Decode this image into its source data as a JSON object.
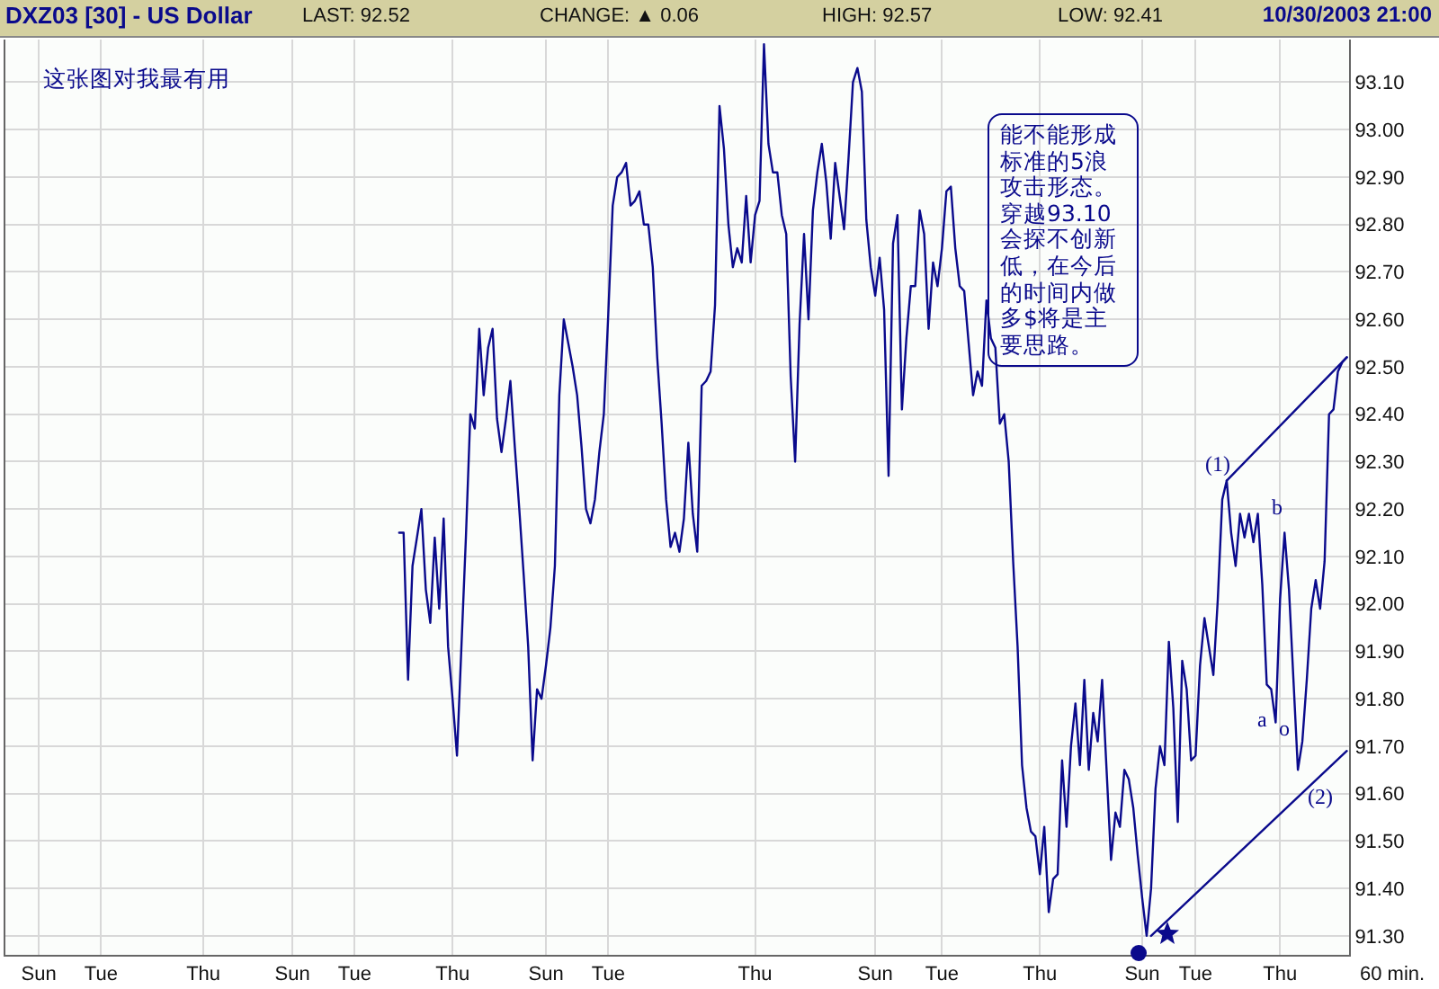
{
  "chart_data": {
    "type": "line",
    "title": "DXZ03 [30] - US Dollar",
    "annotations": [
      "LAST: 92.52",
      "CHANGE: ▲ 0.06",
      "HIGH: 92.57",
      "LOW: 92.41",
      "10/30/2003 21:00",
      "60 min.",
      "这张图对我最有用",
      "能不能形成标准的5浪攻击形态。穿越93.10会探不创新低，在今后的时间内做多$将是主要思路。",
      "(1)",
      "a",
      "b",
      "(2)",
      "o"
    ],
    "categories": [
      null,
      null,
      null,
      null,
      null,
      null,
      null,
      "Sun",
      null,
      null,
      null,
      null,
      null,
      null,
      null,
      null,
      null,
      null,
      null,
      null,
      null,
      "Tue",
      null,
      null,
      null,
      null,
      null,
      null,
      null,
      null,
      null,
      null,
      null,
      null,
      null,
      null,
      null,
      null,
      null,
      null,
      null,
      null,
      null,
      null,
      "Thu",
      null,
      null,
      null,
      null,
      null,
      null,
      null,
      null,
      null,
      null,
      null,
      null,
      null,
      null,
      null,
      null,
      null,
      null,
      null,
      "Sun",
      null,
      null,
      null,
      null,
      null,
      null,
      null,
      null,
      null,
      null,
      null,
      null,
      null,
      "Tue",
      null,
      null,
      null,
      null,
      null,
      null,
      null,
      null,
      null,
      null,
      null,
      null,
      null,
      null,
      null,
      null,
      null,
      null,
      null,
      null,
      null,
      "Thu",
      null,
      null,
      null,
      null,
      null,
      null,
      null,
      null,
      null,
      null,
      null,
      null,
      null,
      null,
      null,
      null,
      null,
      null,
      null,
      null,
      "Sun",
      null,
      null,
      null,
      null,
      null,
      null,
      null,
      null,
      null,
      null,
      null,
      null,
      null,
      "Tue",
      null,
      null,
      null,
      null,
      null,
      null,
      null,
      null,
      null,
      null,
      null,
      null,
      null,
      null,
      null,
      null,
      null,
      null,
      null,
      null,
      null,
      null,
      null,
      null,
      null,
      null,
      null,
      null,
      null,
      null,
      null,
      null,
      "Thu",
      null,
      null,
      null,
      null,
      null,
      null,
      null,
      null,
      null,
      null,
      null,
      null,
      null,
      null,
      null,
      null,
      null,
      null,
      null,
      null,
      null,
      null,
      null,
      null,
      null,
      null,
      "Sun",
      null,
      null,
      null,
      null,
      null,
      null,
      null,
      null,
      null,
      null,
      null,
      null,
      null,
      null,
      "Tue",
      null,
      null,
      null,
      null,
      null,
      null,
      null,
      null,
      null,
      null,
      null,
      null,
      null,
      null,
      null,
      null,
      null,
      null,
      null,
      null,
      null,
      "Thu",
      null,
      null,
      null,
      null,
      null,
      null,
      null,
      null,
      null,
      null,
      null,
      null,
      null,
      null,
      null,
      null,
      null,
      null,
      null,
      null,
      null,
      null,
      "Sun",
      null,
      null,
      null,
      null,
      null,
      null,
      null,
      null,
      null,
      null,
      null,
      "Tue",
      null,
      null,
      null,
      null,
      null,
      null,
      null,
      null,
      null,
      null,
      null,
      null,
      null,
      null,
      null,
      null,
      null,
      null,
      "Thu",
      null,
      null,
      null,
      null,
      null,
      null,
      null,
      null,
      null,
      null,
      null,
      null,
      null,
      null,
      null
    ],
    "series": [
      {
        "color": "#0a0a8c",
        "values": [
          null,
          null,
          null,
          null,
          null,
          null,
          null,
          null,
          null,
          null,
          null,
          null,
          null,
          null,
          null,
          null,
          null,
          null,
          null,
          null,
          null,
          null,
          null,
          null,
          null,
          null,
          null,
          null,
          null,
          null,
          null,
          null,
          null,
          null,
          null,
          null,
          null,
          null,
          null,
          null,
          null,
          null,
          null,
          null,
          null,
          null,
          null,
          null,
          null,
          null,
          null,
          null,
          null,
          null,
          null,
          null,
          null,
          null,
          null,
          null,
          null,
          null,
          null,
          null,
          null,
          null,
          null,
          null,
          null,
          null,
          null,
          null,
          null,
          null,
          null,
          null,
          null,
          null,
          null,
          null,
          null,
          null,
          null,
          null,
          null,
          null,
          null,
          null,
          92.15,
          92.15,
          91.84,
          92.08,
          92.14,
          92.2,
          92.03,
          91.96,
          92.14,
          91.99,
          92.18,
          91.91,
          91.8,
          91.68,
          91.91,
          92.14,
          92.4,
          92.37,
          92.58,
          92.44,
          92.54,
          92.58,
          92.39,
          92.32,
          92.39,
          92.47,
          92.33,
          92.2,
          92.06,
          91.91,
          91.67,
          91.82,
          91.8,
          91.87,
          91.95,
          92.08,
          92.44,
          92.6,
          92.55,
          92.5,
          92.44,
          92.33,
          92.2,
          92.17,
          92.22,
          92.32,
          92.4,
          92.61,
          92.84,
          92.9,
          92.91,
          92.93,
          92.84,
          92.85,
          92.87,
          92.8,
          92.8,
          92.71,
          92.52,
          92.38,
          92.22,
          92.12,
          92.15,
          92.11,
          92.18,
          92.34,
          92.19,
          92.11,
          92.46,
          92.47,
          92.49,
          92.63,
          93.05,
          92.96,
          92.8,
          92.71,
          92.75,
          92.72,
          92.86,
          92.72,
          92.82,
          92.85,
          93.18,
          92.97,
          92.91,
          92.91,
          92.82,
          92.78,
          92.48,
          92.3,
          92.59,
          92.78,
          92.6,
          92.83,
          92.91,
          92.97,
          92.89,
          92.77,
          92.93,
          92.86,
          92.79,
          92.94,
          93.1,
          93.13,
          93.08,
          92.81,
          92.71,
          92.65,
          92.73,
          92.62,
          92.27,
          92.76,
          92.82,
          92.41,
          92.56,
          92.67,
          92.67,
          92.83,
          92.78,
          92.58,
          92.72,
          92.67,
          92.75,
          92.87,
          92.88,
          92.75,
          92.67,
          92.66,
          92.55,
          92.44,
          92.49,
          92.46,
          92.64,
          92.56,
          92.54,
          92.38,
          92.4,
          92.3,
          92.09,
          91.91,
          91.66,
          91.57,
          91.52,
          91.51,
          91.43,
          91.53,
          91.35,
          91.42,
          91.43,
          91.67,
          91.53,
          91.7,
          91.79,
          91.66,
          91.84,
          91.65,
          91.77,
          91.71,
          91.84,
          91.65,
          91.46,
          91.56,
          91.53,
          91.65,
          91.63,
          91.57,
          91.47,
          91.38,
          91.3,
          91.4,
          91.61,
          91.7,
          91.66,
          91.92,
          91.78,
          91.54,
          91.88,
          91.82,
          91.67,
          91.68,
          91.87,
          91.97,
          91.91,
          91.85,
          92.01,
          92.22,
          92.26,
          92.15,
          92.08,
          92.19,
          92.14,
          92.19,
          92.13,
          92.19,
          92.04,
          91.83,
          91.82,
          91.75,
          92.01,
          92.15,
          92.03,
          91.84,
          91.65,
          91.71,
          91.84,
          91.99,
          92.05,
          91.99,
          92.09,
          92.4,
          92.41,
          92.49,
          92.51,
          92.52
        ]
      },
      {
        "type": "line",
        "color": "#0a0a8c",
        "values": [
          null,
          null,
          null,
          null,
          null,
          null,
          null,
          null,
          null,
          null,
          null,
          null,
          null,
          null,
          null,
          null,
          null,
          null,
          null,
          null,
          null,
          null,
          null,
          null,
          null,
          null,
          null,
          null,
          null,
          null,
          null,
          null,
          null,
          null,
          null,
          null,
          null,
          null,
          null,
          null,
          null,
          null,
          null,
          null,
          null,
          null,
          null,
          null,
          null,
          null,
          null,
          null,
          null,
          null,
          null,
          null,
          null,
          null,
          null,
          null,
          null,
          null,
          null,
          null,
          null,
          null,
          null,
          null,
          null,
          null,
          null,
          null,
          null,
          null,
          null,
          null,
          null,
          null,
          null,
          null,
          null,
          null,
          null,
          null,
          null,
          null,
          null,
          null,
          null,
          null,
          null,
          null,
          null,
          null,
          null,
          null,
          null,
          null,
          null,
          null,
          null,
          null,
          null,
          null,
          null,
          null,
          null,
          null,
          null,
          null,
          null,
          null,
          null,
          null,
          null,
          null,
          null,
          null,
          null,
          null,
          null,
          null,
          null,
          null,
          null,
          null,
          null,
          null,
          null,
          null,
          null,
          null,
          null,
          null,
          null,
          null,
          null,
          null,
          null,
          null,
          null,
          null,
          null,
          null,
          null,
          null,
          null,
          null,
          null,
          null,
          null,
          null,
          null,
          null,
          null,
          null,
          null,
          null,
          null,
          null,
          null,
          null,
          null,
          null,
          null,
          null,
          null,
          null,
          null,
          null,
          null,
          null,
          null,
          null,
          null,
          null,
          null,
          null,
          null,
          null,
          null,
          null,
          null,
          null,
          null,
          null,
          null,
          null,
          null,
          null,
          null,
          null,
          null,
          null,
          null,
          null,
          null,
          null,
          null,
          null,
          null,
          null,
          null,
          null,
          null,
          null,
          null,
          null,
          null,
          null,
          null,
          null,
          null,
          null,
          null,
          null,
          null,
          null,
          null,
          null,
          null,
          null,
          null,
          null,
          null,
          null,
          null,
          null,
          null,
          null,
          null,
          null,
          null,
          null,
          null,
          null,
          null,
          null,
          null,
          null,
          null,
          null,
          null,
          null,
          null,
          null,
          null,
          null,
          null,
          null,
          null,
          null,
          null,
          null,
          null,
          null,
          null,
          null,
          null,
          null,
          null,
          null,
          null,
          null,
          null,
          null,
          null,
          null,
          null,
          null,
          null,
          null,
          null,
          null,
          92.26,
          null,
          null,
          null,
          null,
          null,
          null,
          null,
          null,
          null,
          null,
          null,
          null,
          null,
          null,
          null,
          null,
          null,
          null,
          null,
          null,
          null,
          null,
          null,
          null,
          null,
          null,
          92.52
        ]
      },
      {
        "type": "line",
        "color": "#0a0a8c",
        "values": [
          null,
          null,
          null,
          null,
          null,
          null,
          null,
          null,
          null,
          null,
          null,
          null,
          null,
          null,
          null,
          null,
          null,
          null,
          null,
          null,
          null,
          null,
          null,
          null,
          null,
          null,
          null,
          null,
          null,
          null,
          null,
          null,
          null,
          null,
          null,
          null,
          null,
          null,
          null,
          null,
          null,
          null,
          null,
          null,
          null,
          null,
          null,
          null,
          null,
          null,
          null,
          null,
          null,
          null,
          null,
          null,
          null,
          null,
          null,
          null,
          null,
          null,
          null,
          null,
          null,
          null,
          null,
          null,
          null,
          null,
          null,
          null,
          null,
          null,
          null,
          null,
          null,
          null,
          null,
          null,
          null,
          null,
          null,
          null,
          null,
          null,
          null,
          null,
          null,
          null,
          null,
          null,
          null,
          null,
          null,
          null,
          null,
          null,
          null,
          null,
          null,
          null,
          null,
          null,
          null,
          null,
          null,
          null,
          null,
          null,
          null,
          null,
          null,
          null,
          null,
          null,
          null,
          null,
          null,
          null,
          null,
          null,
          null,
          null,
          null,
          null,
          null,
          null,
          null,
          null,
          null,
          null,
          null,
          null,
          null,
          null,
          null,
          null,
          null,
          null,
          null,
          null,
          null,
          null,
          null,
          null,
          null,
          null,
          null,
          null,
          null,
          null,
          null,
          null,
          null,
          null,
          null,
          null,
          null,
          null,
          null,
          null,
          null,
          null,
          null,
          null,
          null,
          null,
          null,
          null,
          null,
          null,
          null,
          null,
          null,
          null,
          null,
          null,
          null,
          null,
          null,
          null,
          null,
          null,
          null,
          null,
          null,
          null,
          null,
          null,
          null,
          null,
          null,
          null,
          null,
          null,
          null,
          null,
          null,
          null,
          null,
          null,
          null,
          null,
          null,
          null,
          null,
          null,
          null,
          null,
          null,
          null,
          null,
          null,
          null,
          null,
          null,
          null,
          null,
          null,
          null,
          null,
          null,
          null,
          null,
          null,
          null,
          null,
          null,
          null,
          null,
          null,
          null,
          null,
          null,
          null,
          null,
          null,
          null,
          null,
          null,
          null,
          null,
          null,
          null,
          null,
          null,
          null,
          null,
          null,
          null,
          null,
          null,
          null,
          null,
          null,
          null,
          91.3,
          null,
          null,
          null,
          null,
          null,
          null,
          null,
          null,
          null,
          null,
          null,
          null,
          null,
          null,
          null,
          null,
          null,
          null,
          null,
          null,
          null,
          null,
          null,
          null,
          null,
          null,
          null,
          null,
          null,
          null,
          null,
          null,
          null,
          null,
          null,
          null,
          null,
          null,
          null,
          null,
          null,
          null,
          null,
          91.69
        ]
      }
    ],
    "ylim": [
      91.26,
      93.19
    ],
    "yticks": [
      {
        "value": 91.3,
        "label": "91.30"
      },
      {
        "value": 91.4,
        "label": "91.40"
      },
      {
        "value": 91.5,
        "label": "91.50"
      },
      {
        "value": 91.6,
        "label": "91.60"
      },
      {
        "value": 91.7,
        "label": "91.70"
      },
      {
        "value": 91.8,
        "label": "91.80"
      },
      {
        "value": 91.9,
        "label": "91.90"
      },
      {
        "value": 92.0,
        "label": "92.00"
      },
      {
        "value": 92.1,
        "label": "92.10"
      },
      {
        "value": 92.2,
        "label": "92.20"
      },
      {
        "value": 92.3,
        "label": "92.30"
      },
      {
        "value": 92.4,
        "label": "92.40"
      },
      {
        "value": 92.5,
        "label": "92.50"
      },
      {
        "value": 92.6,
        "label": "92.60"
      },
      {
        "value": 92.7,
        "label": "92.70"
      },
      {
        "value": 92.8,
        "label": "92.80"
      },
      {
        "value": 92.9,
        "label": "92.90"
      },
      {
        "value": 93.0,
        "label": "93.00"
      },
      {
        "value": 93.1,
        "label": "93.10"
      }
    ],
    "grid": true,
    "marker": "none",
    "line_style": "solid"
  }
}
